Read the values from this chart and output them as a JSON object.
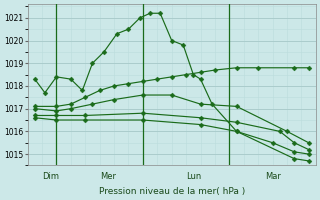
{
  "background_color": "#cce8e8",
  "grid_major_color": "#aacccc",
  "grid_minor_color": "#bbdddd",
  "line_color": "#1a6b1a",
  "title": "Pression niveau de la mer( hPa )",
  "ylim": [
    1014.5,
    1021.6
  ],
  "yticks": [
    1015,
    1016,
    1017,
    1018,
    1019,
    1020,
    1021
  ],
  "xlim": [
    0,
    20
  ],
  "vlines_x": [
    2.0,
    8.0,
    14.0
  ],
  "day_labels": [
    {
      "label": "Dim",
      "x": 1.0
    },
    {
      "label": "Mer",
      "x": 5.0
    },
    {
      "label": "Lun",
      "x": 11.0
    },
    {
      "label": "Mar",
      "x": 16.5
    }
  ],
  "series": [
    {
      "x": [
        0.5,
        1.2,
        2.0,
        3.0,
        3.8,
        4.5,
        5.3,
        6.2,
        7.0,
        7.8,
        8.5,
        9.2,
        10.0,
        10.8,
        11.5,
        12.0,
        12.8,
        14.5,
        18.5,
        19.5
      ],
      "y": [
        1018.3,
        1017.7,
        1018.4,
        1018.3,
        1017.8,
        1019.0,
        1019.5,
        1020.3,
        1020.5,
        1021.0,
        1021.2,
        1021.2,
        1020.0,
        1019.8,
        1018.5,
        1018.3,
        1017.2,
        1016.0,
        1014.8,
        1014.7
      ]
    },
    {
      "x": [
        0.5,
        2.0,
        3.0,
        4.0,
        5.0,
        6.0,
        7.0,
        8.0,
        9.0,
        10.0,
        11.0,
        12.0,
        13.0,
        14.5,
        16.0,
        18.5,
        19.5
      ],
      "y": [
        1017.1,
        1017.1,
        1017.2,
        1017.5,
        1017.8,
        1018.0,
        1018.1,
        1018.2,
        1018.3,
        1018.4,
        1018.5,
        1018.6,
        1018.7,
        1018.8,
        1018.8,
        1018.8,
        1018.8
      ]
    },
    {
      "x": [
        0.5,
        2.0,
        3.0,
        4.5,
        6.0,
        8.0,
        10.0,
        12.0,
        14.5,
        18.0,
        19.5
      ],
      "y": [
        1017.0,
        1016.9,
        1017.0,
        1017.2,
        1017.4,
        1017.6,
        1017.6,
        1017.2,
        1017.1,
        1016.0,
        1015.5
      ]
    },
    {
      "x": [
        0.5,
        2.0,
        4.0,
        8.0,
        12.0,
        14.5,
        17.5,
        18.5,
        19.5
      ],
      "y": [
        1016.7,
        1016.7,
        1016.7,
        1016.8,
        1016.6,
        1016.4,
        1016.0,
        1015.5,
        1015.2
      ]
    },
    {
      "x": [
        0.5,
        2.0,
        4.0,
        8.0,
        12.0,
        14.5,
        17.0,
        18.5,
        19.5
      ],
      "y": [
        1016.6,
        1016.5,
        1016.5,
        1016.5,
        1016.3,
        1016.0,
        1015.5,
        1015.1,
        1015.0
      ]
    }
  ]
}
